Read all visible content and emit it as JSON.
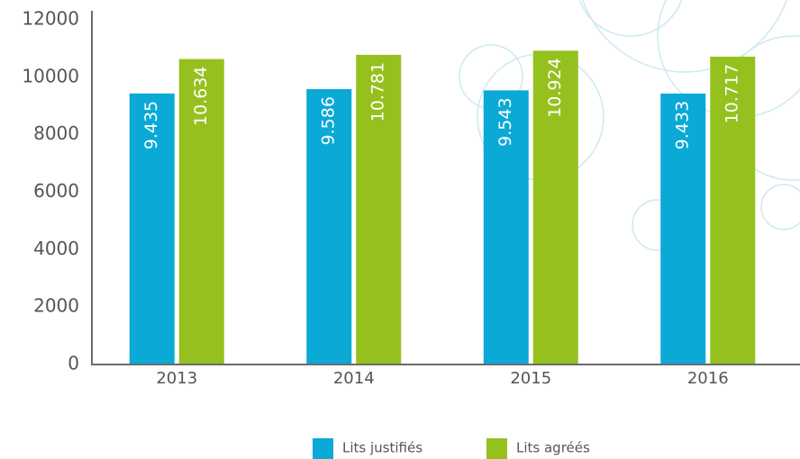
{
  "chart_data": {
    "type": "bar",
    "categories": [
      "2013",
      "2014",
      "2015",
      "2016"
    ],
    "series": [
      {
        "name": "Lits justifiés",
        "color": "#0aa9d6",
        "values": [
          9435,
          9586,
          9543,
          9433
        ],
        "value_labels": [
          "9.435",
          "9.586",
          "9.543",
          "9.433"
        ]
      },
      {
        "name": "Lits agréés",
        "color": "#95c11f",
        "values": [
          10634,
          10781,
          10924,
          10717
        ],
        "value_labels": [
          "10.634",
          "10.781",
          "10.924",
          "10.717"
        ]
      }
    ],
    "ylim": [
      0,
      12000
    ],
    "yticks": [
      0,
      2000,
      4000,
      6000,
      8000,
      10000,
      12000
    ],
    "grid": false
  }
}
